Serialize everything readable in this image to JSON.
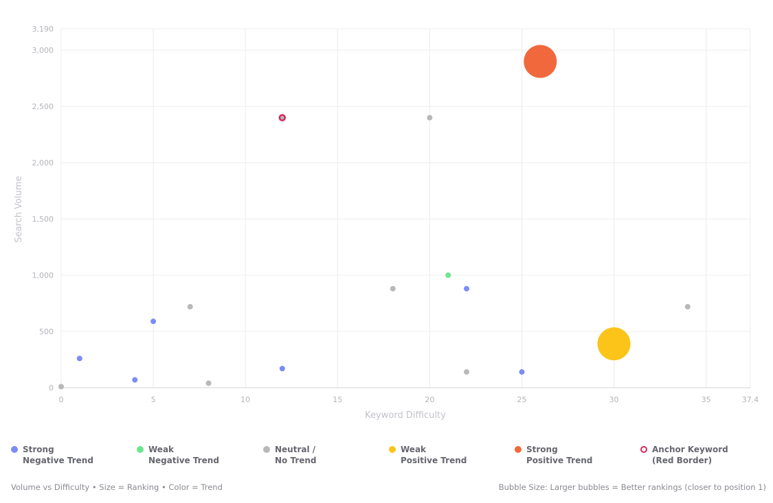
{
  "chart_data": {
    "type": "scatter",
    "xlabel": "Keyword Difficulty",
    "ylabel": "Search Volume",
    "xlim": [
      0,
      37.4
    ],
    "ylim": [
      0,
      3190
    ],
    "x_ticks": [
      0,
      5,
      10,
      15,
      20,
      25,
      30,
      35,
      37.4
    ],
    "y_ticks": [
      0,
      500,
      1000,
      1500,
      2000,
      2500,
      3000,
      3190
    ],
    "x_tick_labels": [
      "0",
      "5",
      "10",
      "15",
      "20",
      "25",
      "30",
      "35",
      "37.4"
    ],
    "y_tick_labels": [
      "0",
      "500",
      "1,000",
      "1,500",
      "2,000",
      "2,500",
      "3,000",
      "3,190"
    ],
    "grid": true,
    "legend_position": "bottom",
    "series": [
      {
        "name": "Strong Negative Trend",
        "label_lines": [
          "Strong",
          "Negative Trend"
        ],
        "color": "#7b8cf7",
        "style": "fill",
        "points": [
          {
            "x": 1,
            "y": 260,
            "r": 4
          },
          {
            "x": 4,
            "y": 70,
            "r": 4
          },
          {
            "x": 5,
            "y": 590,
            "r": 4
          },
          {
            "x": 12,
            "y": 170,
            "r": 4
          },
          {
            "x": 22,
            "y": 880,
            "r": 4
          },
          {
            "x": 25,
            "y": 140,
            "r": 4
          }
        ]
      },
      {
        "name": "Weak Negative Trend",
        "label_lines": [
          "Weak",
          "Negative Trend"
        ],
        "color": "#6ee58f",
        "style": "fill",
        "points": [
          {
            "x": 21,
            "y": 1000,
            "r": 4
          }
        ]
      },
      {
        "name": "Neutral / No Trend",
        "label_lines": [
          "Neutral /",
          "No Trend"
        ],
        "color": "#b8b8b8",
        "style": "fill",
        "points": [
          {
            "x": 0,
            "y": 10,
            "r": 4
          },
          {
            "x": 7,
            "y": 720,
            "r": 4
          },
          {
            "x": 8,
            "y": 40,
            "r": 4
          },
          {
            "x": 18,
            "y": 880,
            "r": 4
          },
          {
            "x": 20,
            "y": 2400,
            "r": 4
          },
          {
            "x": 22,
            "y": 140,
            "r": 4
          },
          {
            "x": 34,
            "y": 720,
            "r": 4
          }
        ]
      },
      {
        "name": "Weak Positive Trend",
        "label_lines": [
          "Weak",
          "Positive Trend"
        ],
        "color": "#fcc419",
        "style": "fill",
        "points": [
          {
            "x": 30,
            "y": 390,
            "r": 24
          }
        ]
      },
      {
        "name": "Strong Positive Trend",
        "label_lines": [
          "Strong",
          "Positive Trend"
        ],
        "color": "#f0683c",
        "style": "fill",
        "points": [
          {
            "x": 26,
            "y": 2900,
            "r": 24
          }
        ]
      },
      {
        "name": "Anchor Keyword (Red Border)",
        "label_lines": [
          "Anchor Keyword",
          "(Red Border)"
        ],
        "color": "#d6295b",
        "fill_color": "#b8b8b8",
        "style": "ring",
        "points": [
          {
            "x": 12,
            "y": 2400,
            "r": 4
          }
        ]
      }
    ]
  },
  "footer": {
    "left": "Volume vs Difficulty • Size = Ranking • Color = Trend",
    "right": "Bubble Size: Larger bubbles = Better rankings (closer to position 1)"
  }
}
